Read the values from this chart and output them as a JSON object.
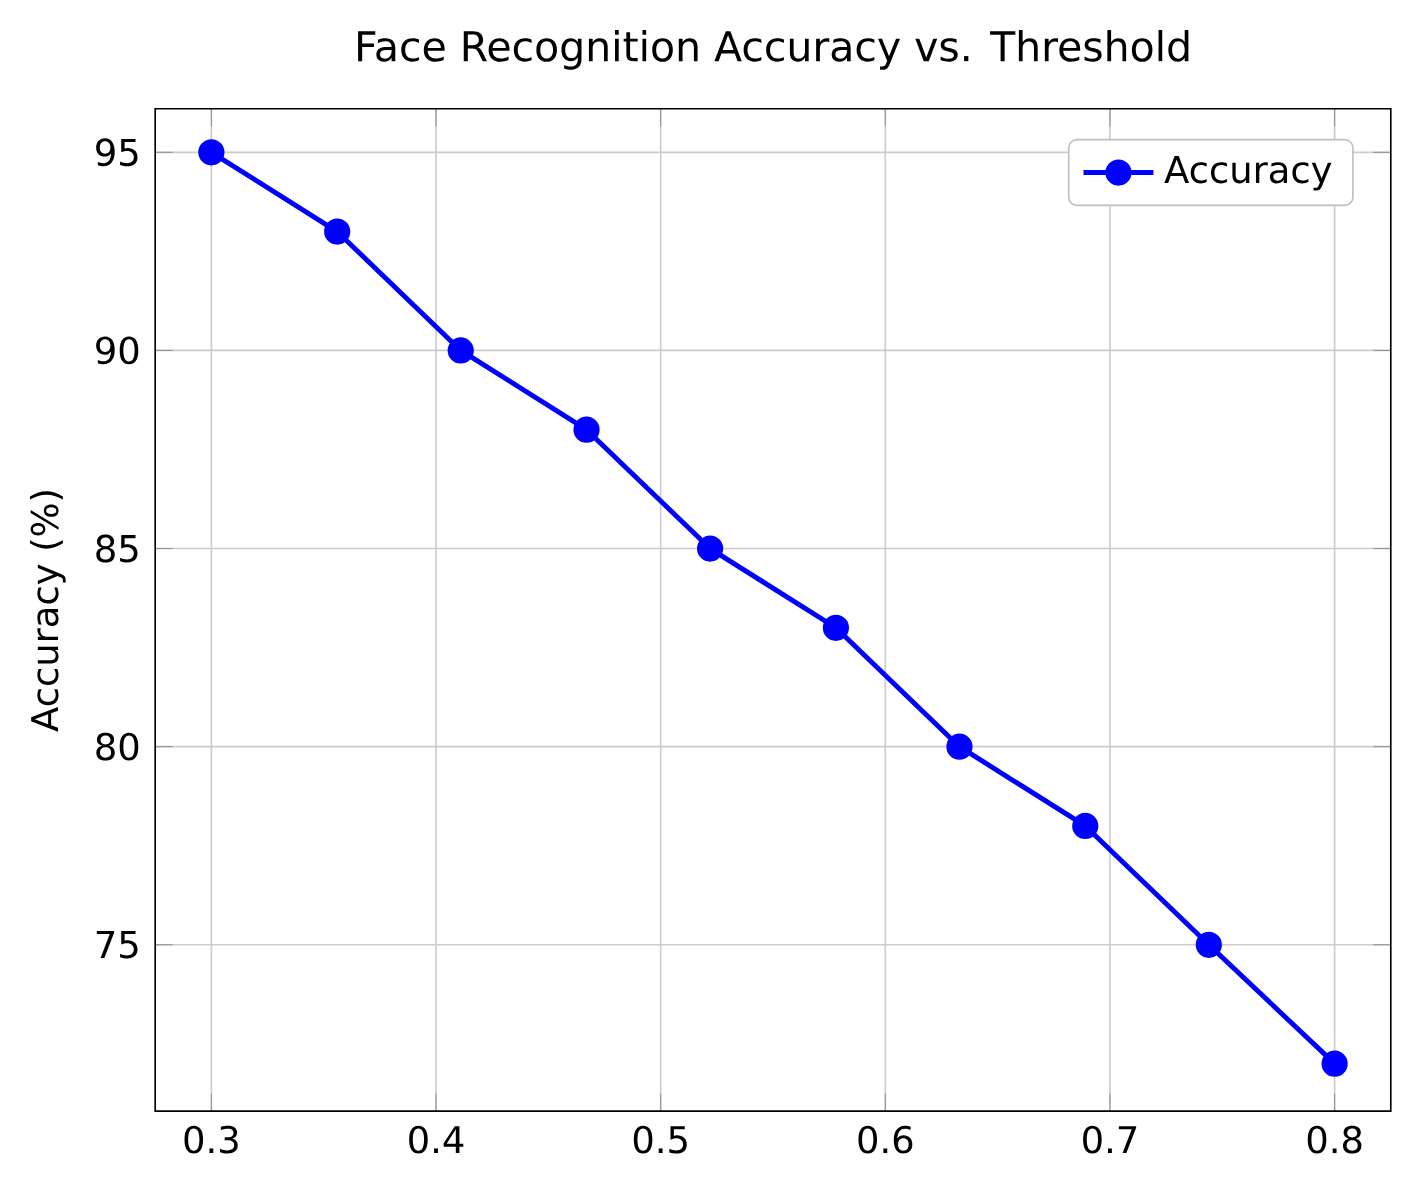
{
  "chart_data": {
    "type": "line",
    "title": "Face Recognition Accuracy vs. Threshold",
    "ylabel": "Accuracy (%)",
    "x": [
      0.3,
      0.356,
      0.411,
      0.467,
      0.522,
      0.578,
      0.633,
      0.689,
      0.744,
      0.8
    ],
    "series": [
      {
        "name": "Accuracy",
        "color": "#0000ff",
        "values": [
          95,
          93,
          90,
          88,
          85,
          83,
          80,
          78,
          75,
          72
        ]
      }
    ],
    "xlim": [
      0.275,
      0.825
    ],
    "ylim": [
      70.8,
      96.1
    ],
    "xticks": [
      0.3,
      0.4,
      0.5,
      0.6,
      0.7,
      0.8
    ],
    "yticks": [
      75,
      80,
      85,
      90,
      95
    ],
    "grid": true,
    "legend": "top right",
    "marker": "circle",
    "line_style": "solid"
  }
}
